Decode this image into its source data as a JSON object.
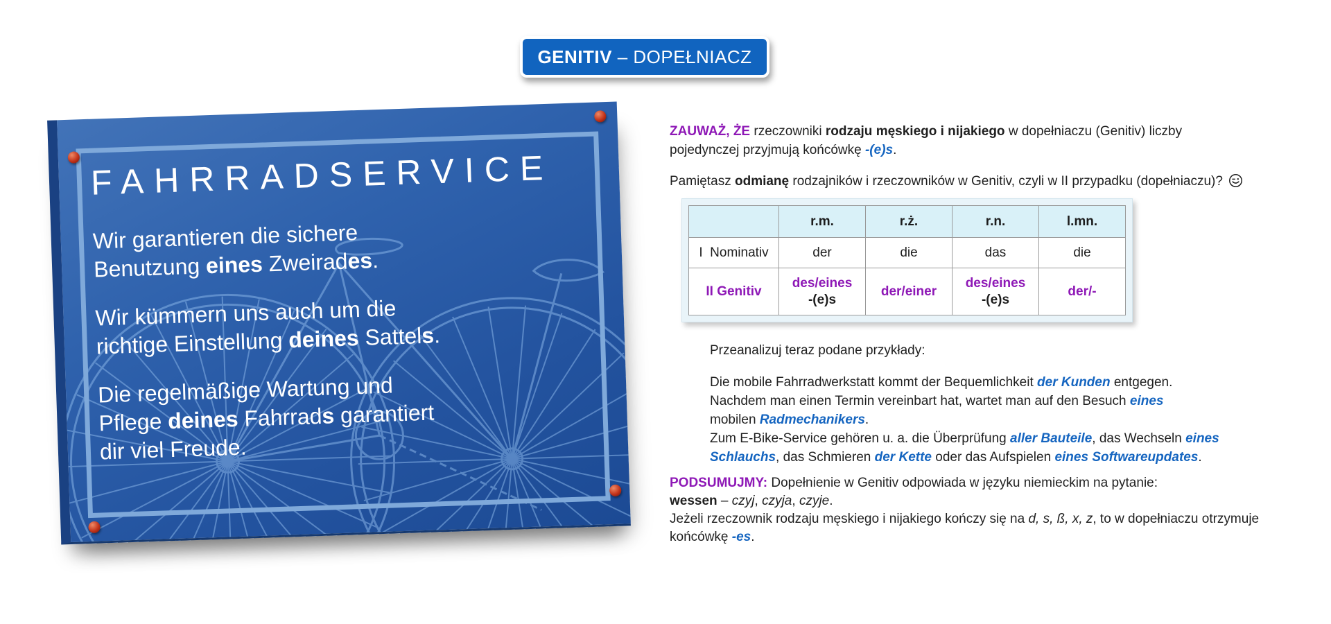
{
  "colors": {
    "badge_blue": "#1164BF",
    "plaque_blue": "#2F62AD",
    "accent_purple": "#8E18B6",
    "accent_blue": "#1565C0",
    "table_header_bg": "#D9F1F8",
    "pin_red": "#C2331A"
  },
  "badge": {
    "segments": [
      {
        "t": "GENITIV",
        "c": "b"
      },
      {
        "t": " – DOPEŁNIACZ"
      }
    ]
  },
  "plaque": {
    "title": "FAHRRADSERVICE",
    "paragraphs": [
      [
        {
          "t": "Wir garantieren die sichere"
        },
        {
          "br": true
        },
        {
          "t": "Benutzung "
        },
        {
          "t": "eines",
          "c": "b"
        },
        {
          "t": " Zweirad"
        },
        {
          "t": "es",
          "c": "b"
        },
        {
          "t": "."
        }
      ],
      [
        {
          "t": "Wir kümmern uns auch um die"
        },
        {
          "br": true
        },
        {
          "t": "richtige Einstellung "
        },
        {
          "t": "deines",
          "c": "b"
        },
        {
          "t": " Sattel"
        },
        {
          "t": "s",
          "c": "b"
        },
        {
          "t": "."
        }
      ],
      [
        {
          "t": "Die regelmäßige Wartung und"
        },
        {
          "br": true
        },
        {
          "t": "Pflege "
        },
        {
          "t": "deines",
          "c": "b"
        },
        {
          "t": " Fahrrad"
        },
        {
          "t": "s",
          "c": "b"
        },
        {
          "t": " garantiert"
        },
        {
          "br": true
        },
        {
          "t": "dir viel Freude."
        }
      ]
    ]
  },
  "intro": {
    "p1": [
      {
        "t": "ZAUWAŻ, ŻE",
        "c": "purple"
      },
      {
        "t": " rzeczowniki "
      },
      {
        "t": "rodzaju męskiego i nijakiego",
        "c": "b"
      },
      {
        "t": " w dopełniaczu (Genitiv) liczby"
      },
      {
        "br": true
      },
      {
        "t": "pojedynczej przyjmują końcówkę "
      },
      {
        "t": "-(e)s",
        "c": "blue"
      },
      {
        "t": "."
      }
    ],
    "p2": [
      {
        "t": "Pamiętasz "
      },
      {
        "t": "odmianę",
        "c": "b"
      },
      {
        "t": " rodzajników i rzeczowników w Genitiv, czyli w II przypadku (dopełniaczu)? "
      }
    ],
    "wink_emoji": "winking-face"
  },
  "table": {
    "headers": [
      "",
      "r.m.",
      "r.ż.",
      "r.n.",
      "l.mn."
    ],
    "row_nominativ": {
      "label": "I  Nominativ",
      "cells": [
        "der",
        "die",
        "das",
        "die"
      ]
    },
    "row_genitiv": {
      "label": [
        {
          "t": "II Genitiv",
          "c": "purple"
        }
      ],
      "cells": [
        [
          {
            "t": "des/eines",
            "c": "purple"
          },
          {
            "br": true
          },
          {
            "t": "-(e)s",
            "c": "bk"
          }
        ],
        [
          {
            "t": "der/einer",
            "c": "purple"
          }
        ],
        [
          {
            "t": "des/eines",
            "c": "purple"
          },
          {
            "br": true
          },
          {
            "t": "-(e)s",
            "c": "bk"
          }
        ],
        [
          {
            "t": "der/-",
            "c": "purple"
          }
        ]
      ]
    }
  },
  "examples": {
    "lead": "Przeanalizuj teraz podane przykłady:",
    "lines": [
      {
        "t": "Die mobile Fahrradwerkstatt kommt der Bequemlichkeit "
      },
      {
        "t": "der Kunden",
        "c": "blue"
      },
      {
        "t": " entgegen."
      },
      {
        "br": true
      },
      {
        "t": "Nachdem man einen Termin vereinbart hat, wartet man auf den Besuch "
      },
      {
        "t": "eines",
        "c": "blue"
      },
      {
        "br": true
      },
      {
        "t": "mobilen "
      },
      {
        "t": "Radmechanikers",
        "c": "blue"
      },
      {
        "t": "."
      },
      {
        "br": true
      },
      {
        "t": "Zum E-Bike-Service gehören u. a. die Überprüfung "
      },
      {
        "t": "aller Bauteile",
        "c": "blue"
      },
      {
        "t": ", das Wechseln "
      },
      {
        "t": "eines",
        "c": "blue"
      },
      {
        "br": true
      },
      {
        "t": "Schlauchs",
        "c": "blue"
      },
      {
        "t": ", das Schmieren "
      },
      {
        "t": "der Kette",
        "c": "blue"
      },
      {
        "t": " oder das Aufspielen "
      },
      {
        "t": "eines Softwareupdates",
        "c": "blue"
      },
      {
        "t": "."
      }
    ]
  },
  "summary": {
    "lines": [
      {
        "t": "PODSUMUJMY:",
        "c": "purple"
      },
      {
        "t": " Dopełnienie w Genitiv odpowiada w języku niemieckim na pytanie:"
      },
      {
        "br": true
      },
      {
        "t": "wessen",
        "c": "b"
      },
      {
        "t": " – "
      },
      {
        "t": "czyj",
        "c": "i"
      },
      {
        "t": ", "
      },
      {
        "t": "czyja",
        "c": "i"
      },
      {
        "t": ", "
      },
      {
        "t": "czyje",
        "c": "i"
      },
      {
        "t": "."
      },
      {
        "br": true
      },
      {
        "t": "Jeżeli rzeczownik rodzaju męskiego i nijakiego kończy się na "
      },
      {
        "t": "d, s, ß, x, z",
        "c": "i"
      },
      {
        "t": ", to w dopełniaczu otrzymuje"
      },
      {
        "br": true
      },
      {
        "t": "końcówkę "
      },
      {
        "t": "-es",
        "c": "blue"
      },
      {
        "t": "."
      }
    ]
  }
}
